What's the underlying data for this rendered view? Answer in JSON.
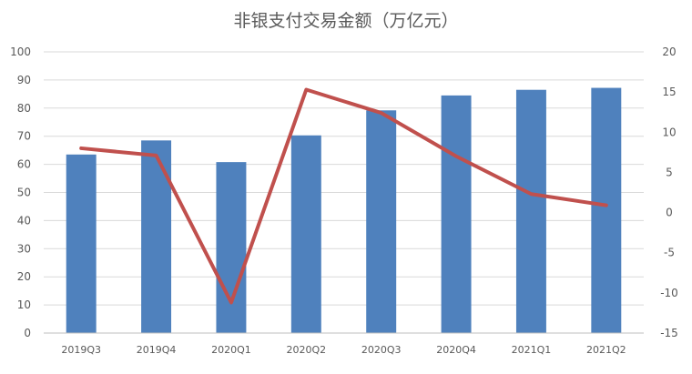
{
  "chart_data": {
    "type": "bar",
    "title": "非银支付交易金额（万亿元）",
    "categories": [
      "2019Q3",
      "2019Q4",
      "2020Q1",
      "2020Q2",
      "2020Q3",
      "2020Q4",
      "2021Q1",
      "2021Q2"
    ],
    "series": [
      {
        "type": "bar",
        "axis": "left",
        "values": [
          63.5,
          68.5,
          60.8,
          70.3,
          79.2,
          84.5,
          86.5,
          87.2
        ],
        "color": "#4F81BD"
      },
      {
        "type": "line",
        "axis": "right",
        "values": [
          8.0,
          7.1,
          -11.2,
          15.3,
          12.4,
          7.0,
          2.3,
          0.9
        ],
        "color": "#C0504D"
      }
    ],
    "y_left": {
      "min": 0,
      "max": 100,
      "ticks": [
        "0",
        "10",
        "20",
        "30",
        "40",
        "50",
        "60",
        "70",
        "80",
        "90",
        "100"
      ]
    },
    "y_right": {
      "min": -15,
      "max": 20,
      "ticks": [
        "-15",
        "-10",
        "-5",
        "0",
        "5",
        "10",
        "15",
        "20"
      ]
    },
    "grid": true,
    "xlabel": "",
    "ylabel": ""
  }
}
